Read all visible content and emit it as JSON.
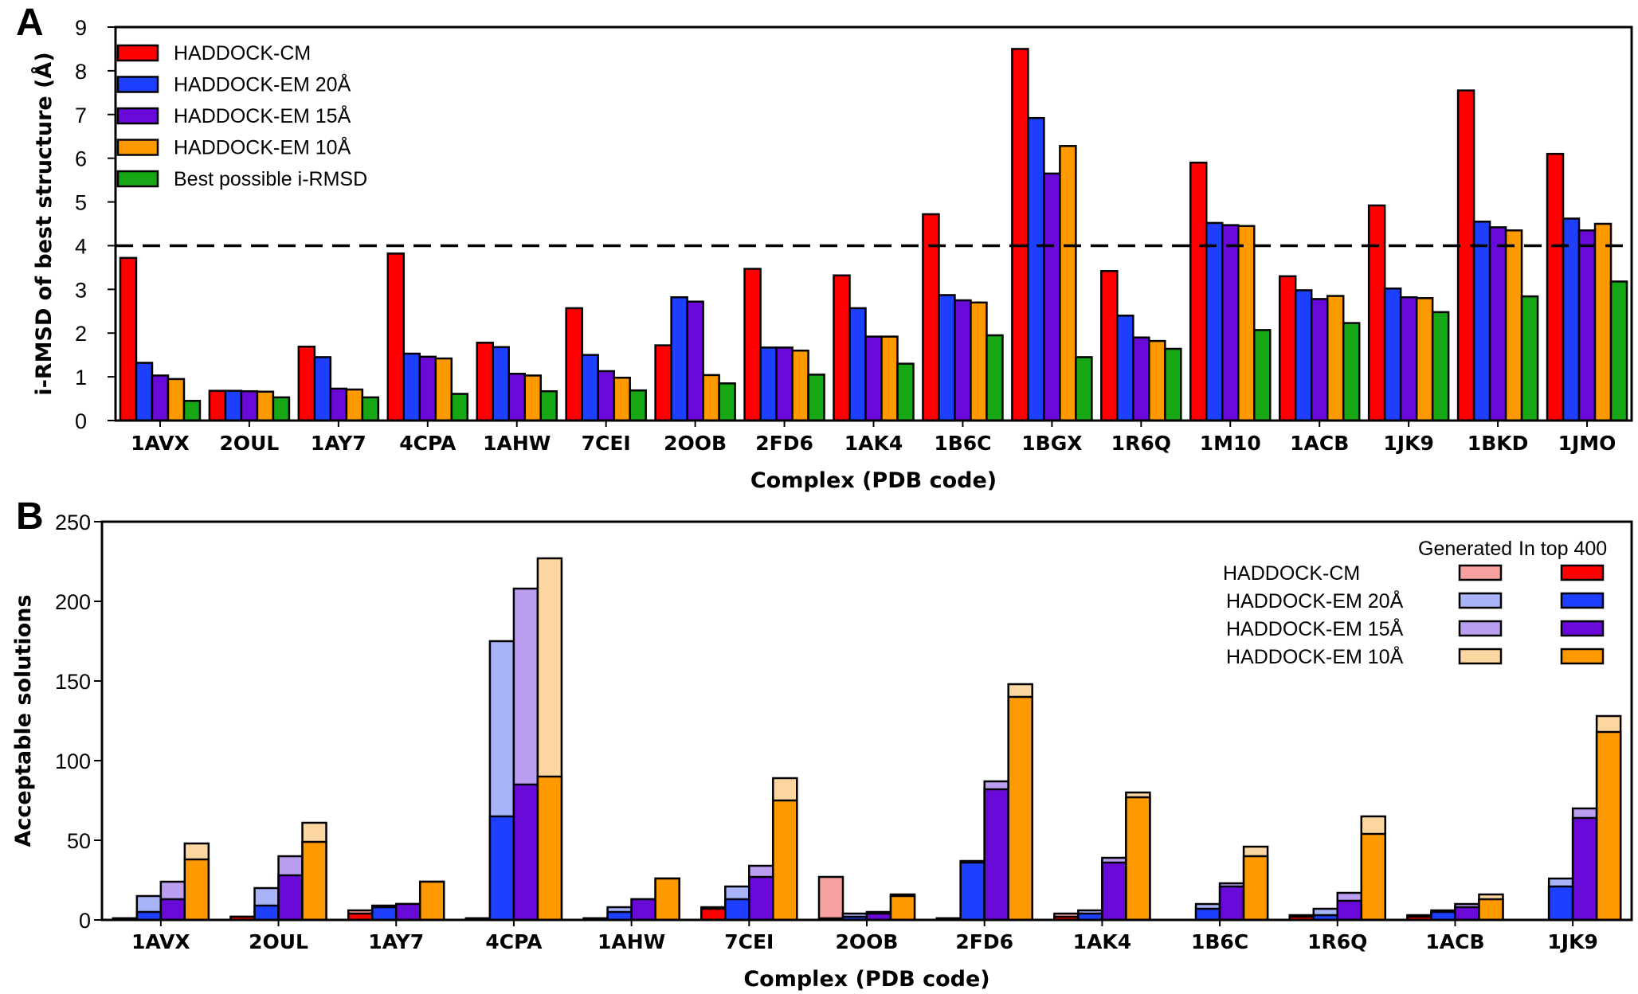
{
  "chart_data": [
    {
      "type": "bar",
      "panel_label": "A",
      "xlabel": "Complex (PDB code)",
      "ylabel": "i-RMSD of best structure (Å)",
      "ylim": [
        0,
        9
      ],
      "yticks": [
        0,
        1,
        2,
        3,
        4,
        5,
        6,
        7,
        8,
        9
      ],
      "reference_line": {
        "y": 4,
        "style": "dashed"
      },
      "legend_position": "top-left",
      "categories": [
        "1AVX",
        "2OUL",
        "1AY7",
        "4CPA",
        "1AHW",
        "7CEI",
        "2OOB",
        "2FD6",
        "1AK4",
        "1B6C",
        "1BGX",
        "1R6Q",
        "1M10",
        "1ACB",
        "1JK9",
        "1BKD",
        "1JMO"
      ],
      "series": [
        {
          "name": "HADDOCK-CM",
          "color": "#ff0000",
          "values": [
            3.72,
            0.68,
            1.69,
            3.82,
            1.78,
            2.57,
            1.72,
            3.47,
            3.32,
            4.72,
            8.5,
            3.42,
            5.9,
            3.3,
            4.92,
            7.55,
            6.1
          ]
        },
        {
          "name": "HADDOCK-EM 20Å",
          "color": "#1f3fff",
          "values": [
            1.32,
            0.68,
            1.45,
            1.53,
            1.68,
            1.5,
            2.82,
            1.67,
            2.57,
            2.87,
            6.92,
            2.4,
            4.52,
            2.98,
            3.02,
            4.55,
            4.62
          ]
        },
        {
          "name": "HADDOCK-EM 15Å",
          "color": "#6a0ad8",
          "values": [
            1.03,
            0.67,
            0.73,
            1.46,
            1.07,
            1.13,
            2.72,
            1.67,
            1.92,
            2.75,
            5.65,
            1.9,
            4.47,
            2.78,
            2.82,
            4.42,
            4.35
          ]
        },
        {
          "name": "HADDOCK-EM 10Å",
          "color": "#ff9900",
          "values": [
            0.95,
            0.66,
            0.71,
            1.42,
            1.03,
            0.98,
            1.04,
            1.6,
            1.92,
            2.7,
            6.28,
            1.82,
            4.45,
            2.85,
            2.8,
            4.35,
            4.5
          ]
        },
        {
          "name": "Best possible i-RMSD",
          "color": "#16a616",
          "values": [
            0.45,
            0.53,
            0.53,
            0.61,
            0.67,
            0.69,
            0.85,
            1.05,
            1.3,
            1.95,
            1.45,
            1.64,
            2.07,
            2.23,
            2.48,
            2.84,
            3.18
          ]
        }
      ]
    },
    {
      "type": "bar",
      "panel_label": "B",
      "xlabel": "Complex (PDB code)",
      "ylabel": "Acceptable solutions",
      "ylim": [
        0,
        250
      ],
      "yticks": [
        0,
        50,
        100,
        150,
        200,
        250
      ],
      "legend_position": "top-right",
      "legend_column_headers": [
        "Generated",
        "In top 400"
      ],
      "categories": [
        "1AVX",
        "2OUL",
        "1AY7",
        "4CPA",
        "1AHW",
        "7CEI",
        "2OOB",
        "2FD6",
        "1AK4",
        "1B6C",
        "1R6Q",
        "1ACB",
        "1JK9"
      ],
      "series": [
        {
          "name": "HADDOCK-CM",
          "color_generated": "#f7a0a0",
          "color_top400": "#ff0000",
          "generated": [
            1,
            2,
            6,
            1,
            1,
            8,
            27,
            1,
            4,
            0,
            3,
            3,
            0
          ],
          "in_top_400": [
            1,
            2,
            4,
            1,
            1,
            7,
            1,
            1,
            2,
            0,
            2,
            2,
            0
          ]
        },
        {
          "name": "HADDOCK-EM 20Å",
          "color_generated": "#a9b4f8",
          "color_top400": "#1f3fff",
          "generated": [
            15,
            20,
            9,
            175,
            8,
            21,
            4,
            37,
            6,
            10,
            7,
            6,
            26
          ],
          "in_top_400": [
            5,
            9,
            8,
            65,
            5,
            13,
            2,
            36,
            4,
            7,
            3,
            5,
            21
          ]
        },
        {
          "name": "HADDOCK-EM 15Å",
          "color_generated": "#bc9ef0",
          "color_top400": "#6a0ad8",
          "generated": [
            24,
            40,
            10,
            208,
            13,
            34,
            5,
            87,
            39,
            23,
            17,
            10,
            70
          ],
          "in_top_400": [
            13,
            28,
            10,
            85,
            13,
            27,
            4,
            82,
            36,
            21,
            12,
            8,
            64
          ]
        },
        {
          "name": "HADDOCK-EM 10Å",
          "color_generated": "#fdd7a2",
          "color_top400": "#ff9900",
          "generated": [
            48,
            61,
            24,
            227,
            26,
            89,
            16,
            148,
            80,
            46,
            65,
            16,
            128
          ],
          "in_top_400": [
            38,
            49,
            24,
            90,
            26,
            75,
            15,
            140,
            77,
            40,
            54,
            13,
            118
          ]
        }
      ]
    }
  ]
}
